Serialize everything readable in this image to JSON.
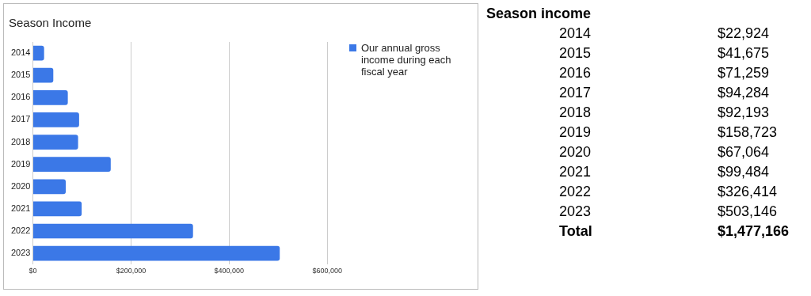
{
  "chart_data": [
    {
      "type": "bar",
      "orientation": "horizontal",
      "title": "Season Income",
      "categories": [
        "2014",
        "2015",
        "2016",
        "2017",
        "2018",
        "2019",
        "2020",
        "2021",
        "2022",
        "2023"
      ],
      "series": [
        {
          "name": "Our annual gross income during each fiscal year",
          "color": "#3b78e7",
          "values": [
            22924,
            41675,
            71259,
            94284,
            92193,
            158723,
            67064,
            99484,
            326414,
            503146
          ]
        }
      ],
      "xlim": [
        0,
        600000
      ],
      "xticks": [
        {
          "value": 0,
          "label": "$0"
        },
        {
          "value": 200000,
          "label": "$200,000"
        },
        {
          "value": 400000,
          "label": "$400,000"
        },
        {
          "value": 600000,
          "label": "$600,000"
        }
      ],
      "grid": "x",
      "legend": "right"
    },
    {
      "type": "other",
      "title": "Season income",
      "annotations": [
        "2014",
        "$22,924",
        "2015",
        "$41,675",
        "2016",
        "$71,259",
        "2017",
        "$94,284",
        "2018",
        "$92,193",
        "2019",
        "$158,723",
        "2020",
        "$67,064",
        "2021",
        "$99,484",
        "2022",
        "$326,414",
        "2023",
        "$503,146",
        "Total",
        "$1,477,166"
      ]
    }
  ]
}
